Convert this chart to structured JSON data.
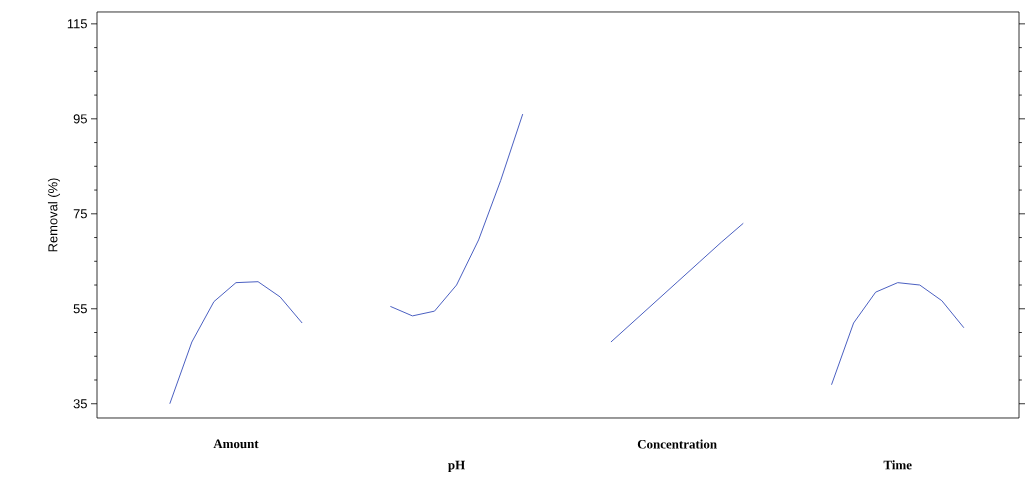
{
  "chart_data": {
    "type": "line",
    "ylabel": "Removal (%)",
    "categories": [
      null,
      null,
      null,
      "Amount",
      null,
      null,
      null,
      null,
      null,
      null,
      null,
      null,
      null,
      "pH",
      null,
      null,
      null,
      null,
      null,
      null,
      null,
      null,
      null,
      "Concentration",
      null,
      null,
      null,
      null,
      null,
      null,
      null,
      null,
      null,
      "Time",
      null,
      null,
      null
    ],
    "series": [
      {
        "color": "#4a5fc1",
        "values": [
          35,
          48,
          56.5,
          60.5,
          60.7,
          57.5,
          52,
          null,
          null,
          null,
          null,
          null,
          null,
          null,
          null,
          null,
          null,
          null,
          null,
          null,
          null,
          null,
          null,
          null,
          null,
          null,
          null,
          null,
          null,
          null,
          null,
          null,
          null,
          null,
          null,
          null,
          null
        ]
      },
      {
        "color": "#4a5fc1",
        "values": [
          null,
          null,
          null,
          null,
          null,
          null,
          null,
          null,
          null,
          null,
          55.5,
          53.5,
          54.5,
          60,
          69.5,
          82,
          96,
          null,
          null,
          null,
          null,
          null,
          null,
          null,
          null,
          null,
          null,
          null,
          null,
          null,
          null,
          null,
          null,
          null,
          null,
          null,
          null
        ]
      },
      {
        "color": "#4a5fc1",
        "values": [
          null,
          null,
          null,
          null,
          null,
          null,
          null,
          null,
          null,
          null,
          null,
          null,
          null,
          null,
          null,
          null,
          null,
          null,
          null,
          null,
          48,
          52.2,
          56.4,
          60.6,
          64.8,
          69,
          73,
          null,
          null,
          null,
          null,
          null,
          null,
          null,
          null,
          null,
          null
        ]
      },
      {
        "color": "#4a5fc1",
        "values": [
          null,
          null,
          null,
          null,
          null,
          null,
          null,
          null,
          null,
          null,
          null,
          null,
          null,
          null,
          null,
          null,
          null,
          null,
          null,
          null,
          null,
          null,
          null,
          null,
          null,
          null,
          null,
          null,
          null,
          null,
          39,
          52,
          58.5,
          60.5,
          60,
          56.7,
          51
        ]
      }
    ],
    "ylim": [
      32,
      117.5
    ],
    "yticks": [
      35,
      55,
      75,
      95,
      115
    ]
  }
}
